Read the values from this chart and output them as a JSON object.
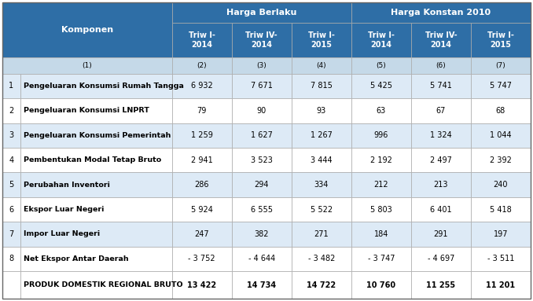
{
  "header_group1": "Harga Berlaku",
  "header_group2": "Harga Konstan 2010",
  "col_headers": [
    "Triw I-\n2014",
    "Triw IV-\n2014",
    "Triw I-\n2015",
    "Triw I-\n2014",
    "Triw IV-\n2014",
    "Triw I-\n2015"
  ],
  "col_index_labels": [
    "(1)",
    "(2)",
    "(3)",
    "(4)",
    "(5)",
    "(6)",
    "(7)"
  ],
  "row_numbers": [
    "1",
    "2",
    "3",
    "4",
    "5",
    "6",
    "7",
    "8",
    ""
  ],
  "row_labels": [
    "Pengeluaran Konsumsi Rumah Tangga",
    "Pengeluaran Konsumsi LNPRT",
    "Pengeluaran Konsumsi Pemerintah",
    "Pembentukan Modal Tetap Bruto",
    "Perubahan Inventori",
    "Ekspor Luar Negeri",
    "Impor Luar Negeri",
    "Net Ekspor Antar Daerah",
    "PRODUK DOMESTIK REGIONAL BRUTO"
  ],
  "data": [
    [
      "6 932",
      "7 671",
      "7 815",
      "5 425",
      "5 741",
      "5 747"
    ],
    [
      "79",
      "90",
      "93",
      "63",
      "67",
      "68"
    ],
    [
      "1 259",
      "1 627",
      "1 267",
      "996",
      "1 324",
      "1 044"
    ],
    [
      "2 941",
      "3 523",
      "3 444",
      "2 192",
      "2 497",
      "2 392"
    ],
    [
      "286",
      "294",
      "334",
      "212",
      "213",
      "240"
    ],
    [
      "5 924",
      "6 555",
      "5 522",
      "5 803",
      "6 401",
      "5 418"
    ],
    [
      "247",
      "382",
      "271",
      "184",
      "291",
      "197"
    ],
    [
      "- 3 752",
      "- 4 644",
      "- 3 482",
      "- 3 747",
      "- 4 697",
      "- 3 511"
    ],
    [
      "13 422",
      "14 734",
      "14 722",
      "10 760",
      "11 255",
      "11 201"
    ]
  ],
  "header_bg": "#2E6EA6",
  "header_text": "#FFFFFF",
  "index_row_bg": "#C5D9E8",
  "row_bgs": [
    "#DDEAF6",
    "#FFFFFF",
    "#DDEAF6",
    "#FFFFFF",
    "#DDEAF6",
    "#FFFFFF",
    "#DDEAF6",
    "#FFFFFF"
  ],
  "footer_row_bg": "#FFFFFF",
  "border_color": "#AAAAAA"
}
